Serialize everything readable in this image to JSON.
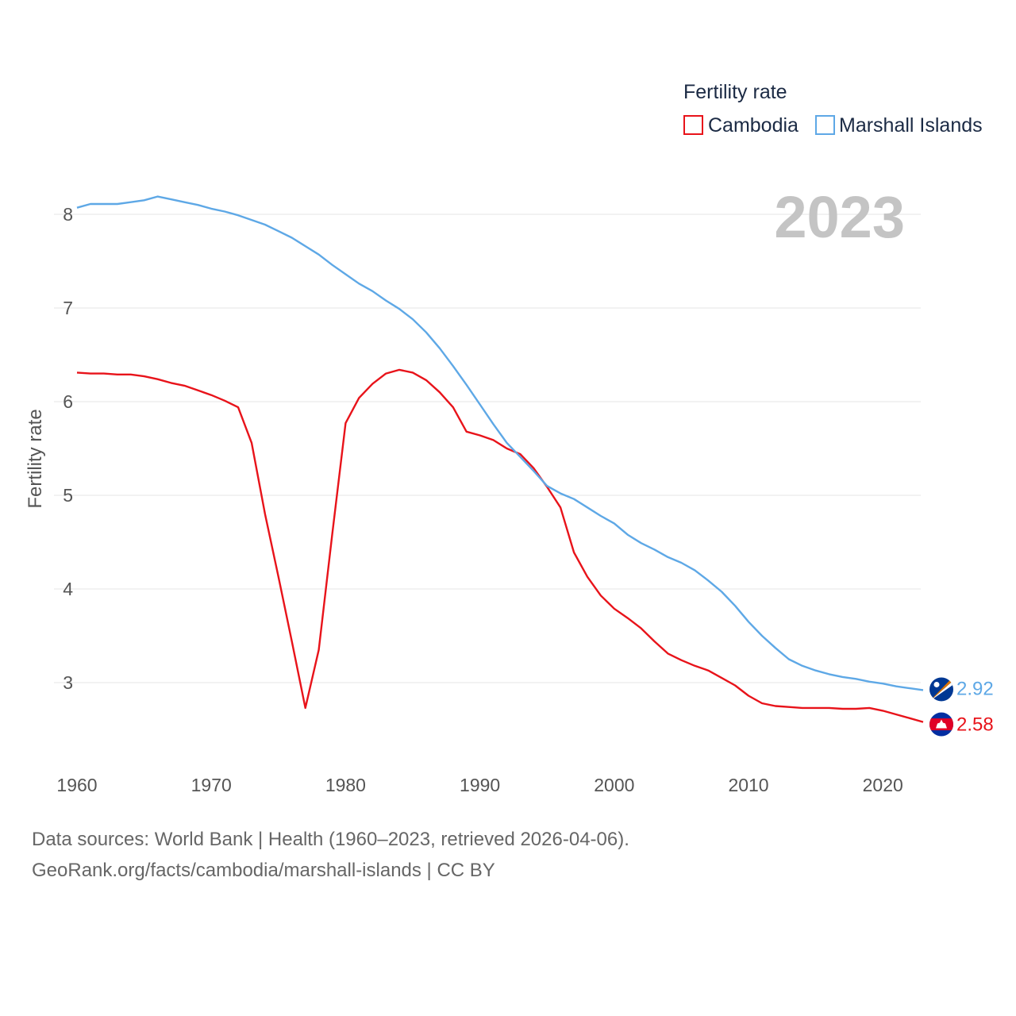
{
  "chart_data": {
    "type": "line",
    "ylabel": "Fertility rate",
    "xlabel": "",
    "current_year_label": "2023",
    "xlim": [
      1960,
      2023
    ],
    "ylim": [
      2.3,
      8.5
    ],
    "x_ticks": [
      1960,
      1970,
      1980,
      1990,
      2000,
      2010,
      2020
    ],
    "y_ticks": [
      3,
      4,
      5,
      6,
      7,
      8
    ],
    "grid": true,
    "legend": {
      "title": "Fertility rate",
      "position": "top-right"
    },
    "x": [
      1960,
      1961,
      1962,
      1963,
      1964,
      1965,
      1966,
      1967,
      1968,
      1969,
      1970,
      1971,
      1972,
      1973,
      1974,
      1975,
      1976,
      1977,
      1978,
      1979,
      1980,
      1981,
      1982,
      1983,
      1984,
      1985,
      1986,
      1987,
      1988,
      1989,
      1990,
      1991,
      1992,
      1993,
      1994,
      1995,
      1996,
      1997,
      1998,
      1999,
      2000,
      2001,
      2002,
      2003,
      2004,
      2005,
      2006,
      2007,
      2008,
      2009,
      2010,
      2011,
      2012,
      2013,
      2014,
      2015,
      2016,
      2017,
      2018,
      2019,
      2020,
      2021,
      2022,
      2023
    ],
    "series": [
      {
        "name": "Cambodia",
        "color": "#e8131a",
        "end_label": "2.58",
        "flag": "cambodia-flag",
        "values": [
          6.31,
          6.3,
          6.3,
          6.29,
          6.29,
          6.27,
          6.24,
          6.2,
          6.17,
          6.12,
          6.07,
          6.01,
          5.94,
          5.56,
          4.8,
          4.13,
          3.44,
          2.73,
          3.35,
          4.58,
          5.77,
          6.04,
          6.19,
          6.3,
          6.34,
          6.31,
          6.23,
          6.1,
          5.94,
          5.68,
          5.64,
          5.59,
          5.5,
          5.44,
          5.29,
          5.09,
          4.87,
          4.39,
          4.13,
          3.93,
          3.79,
          3.69,
          3.58,
          3.44,
          3.31,
          3.24,
          3.18,
          3.13,
          3.05,
          2.97,
          2.86,
          2.78,
          2.75,
          2.74,
          2.73,
          2.73,
          2.73,
          2.72,
          2.72,
          2.73,
          2.7,
          2.66,
          2.62,
          2.58
        ]
      },
      {
        "name": "Marshall Islands",
        "color": "#5ea8e6",
        "end_label": "2.92",
        "flag": "marshall-islands-flag",
        "values": [
          8.07,
          8.11,
          8.11,
          8.11,
          8.13,
          8.15,
          8.19,
          8.16,
          8.13,
          8.1,
          8.06,
          8.03,
          7.99,
          7.94,
          7.89,
          7.82,
          7.75,
          7.66,
          7.57,
          7.46,
          7.36,
          7.26,
          7.18,
          7.08,
          6.99,
          6.88,
          6.74,
          6.57,
          6.38,
          6.18,
          5.97,
          5.76,
          5.56,
          5.41,
          5.26,
          5.1,
          5.02,
          4.96,
          4.87,
          4.78,
          4.7,
          4.58,
          4.49,
          4.42,
          4.34,
          4.28,
          4.2,
          4.09,
          3.97,
          3.82,
          3.65,
          3.5,
          3.37,
          3.25,
          3.18,
          3.13,
          3.09,
          3.06,
          3.04,
          3.01,
          2.99,
          2.96,
          2.94,
          2.92
        ]
      }
    ]
  },
  "source": {
    "line1": "Data sources: World Bank | Health (1960–2023, retrieved 2026-04-06).",
    "line2": "GeoRank.org/facts/cambodia/marshall-islands | CC BY"
  }
}
